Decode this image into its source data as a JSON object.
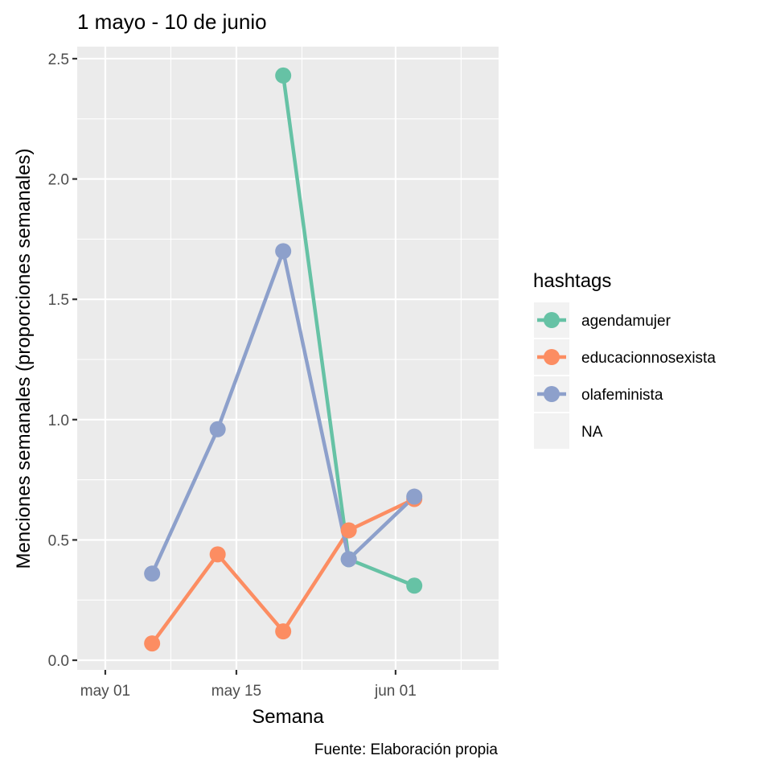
{
  "chart_data": {
    "type": "line",
    "title": "1 mayo - 10 de junio",
    "xlabel": "Semana",
    "ylabel": "Menciones semanales (proporciones semanales)",
    "caption": "Fuente: Elaboración propia",
    "x_ticks": [
      {
        "label": "may 01",
        "date": "2020-05-01"
      },
      {
        "label": "may 15",
        "date": "2020-05-15"
      },
      {
        "label": "jun 01",
        "date": "2020-06-01"
      }
    ],
    "x_minor_ticks": [
      "2020-05-08",
      "2020-05-22",
      "2020-06-08"
    ],
    "xlim": [
      "2020-04-28",
      "2020-06-12"
    ],
    "y_ticks": [
      "0.0",
      "0.5",
      "1.0",
      "1.5",
      "2.0",
      "2.5"
    ],
    "ylim": [
      -0.04,
      2.55
    ],
    "grid": true,
    "legend": {
      "title": "hashtags",
      "placement": "right",
      "entries": [
        "agendamujer",
        "educacionnosexista",
        "olafeminista",
        "NA"
      ]
    },
    "series": [
      {
        "name": "agendamujer",
        "color": "#66c2a5",
        "points": [
          {
            "x": "2020-05-20",
            "y": 2.43
          },
          {
            "x": "2020-05-27",
            "y": 0.42
          },
          {
            "x": "2020-06-03",
            "y": 0.31
          }
        ]
      },
      {
        "name": "educacionnosexista",
        "color": "#fc8d62",
        "points": [
          {
            "x": "2020-05-06",
            "y": 0.07
          },
          {
            "x": "2020-05-13",
            "y": 0.44
          },
          {
            "x": "2020-05-20",
            "y": 0.12
          },
          {
            "x": "2020-05-27",
            "y": 0.54
          },
          {
            "x": "2020-06-03",
            "y": 0.67
          }
        ]
      },
      {
        "name": "olafeminista",
        "color": "#8da0cb",
        "points": [
          {
            "x": "2020-05-06",
            "y": 0.36
          },
          {
            "x": "2020-05-13",
            "y": 0.96
          },
          {
            "x": "2020-05-20",
            "y": 1.7
          },
          {
            "x": "2020-05-27",
            "y": 0.42
          },
          {
            "x": "2020-06-03",
            "y": 0.68
          }
        ]
      }
    ]
  }
}
